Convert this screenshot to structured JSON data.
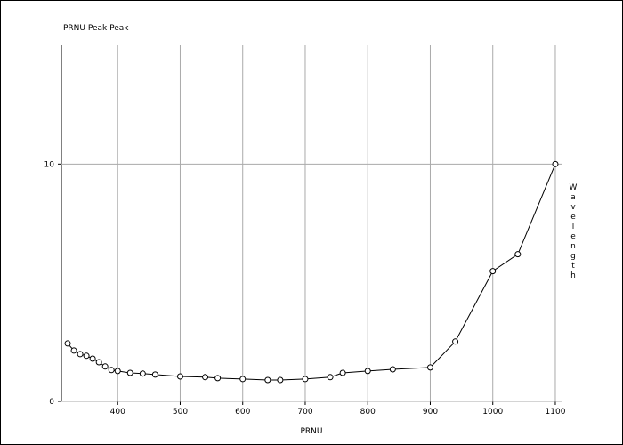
{
  "chart_data": {
    "type": "line",
    "title": "PRNU Peak Peak",
    "x_label": "PRNU",
    "y_label": "Wavelength",
    "x": [
      320,
      330,
      340,
      350,
      360,
      370,
      380,
      390,
      400,
      420,
      440,
      460,
      500,
      540,
      560,
      600,
      640,
      660,
      700,
      740,
      760,
      800,
      840,
      900,
      940,
      1000,
      1040,
      1100
    ],
    "series": [
      {
        "name": "PRNU Peak Peak",
        "color": "#000000",
        "values": [
          2.44,
          2.14,
          1.99,
          1.92,
          1.8,
          1.65,
          1.47,
          1.32,
          1.28,
          1.2,
          1.17,
          1.13,
          1.05,
          1.02,
          0.98,
          0.94,
          0.9,
          0.9,
          0.94,
          1.02,
          1.2,
          1.28,
          1.35,
          1.43,
          2.52,
          5.49,
          6.2,
          10
        ]
      }
    ],
    "xlim": [
      310,
      1110
    ],
    "xticks": [
      400,
      500,
      600,
      700,
      800,
      900,
      1000,
      1100
    ],
    "ylim": [
      0,
      15
    ],
    "yticks": [
      0,
      10
    ],
    "grid": true
  }
}
